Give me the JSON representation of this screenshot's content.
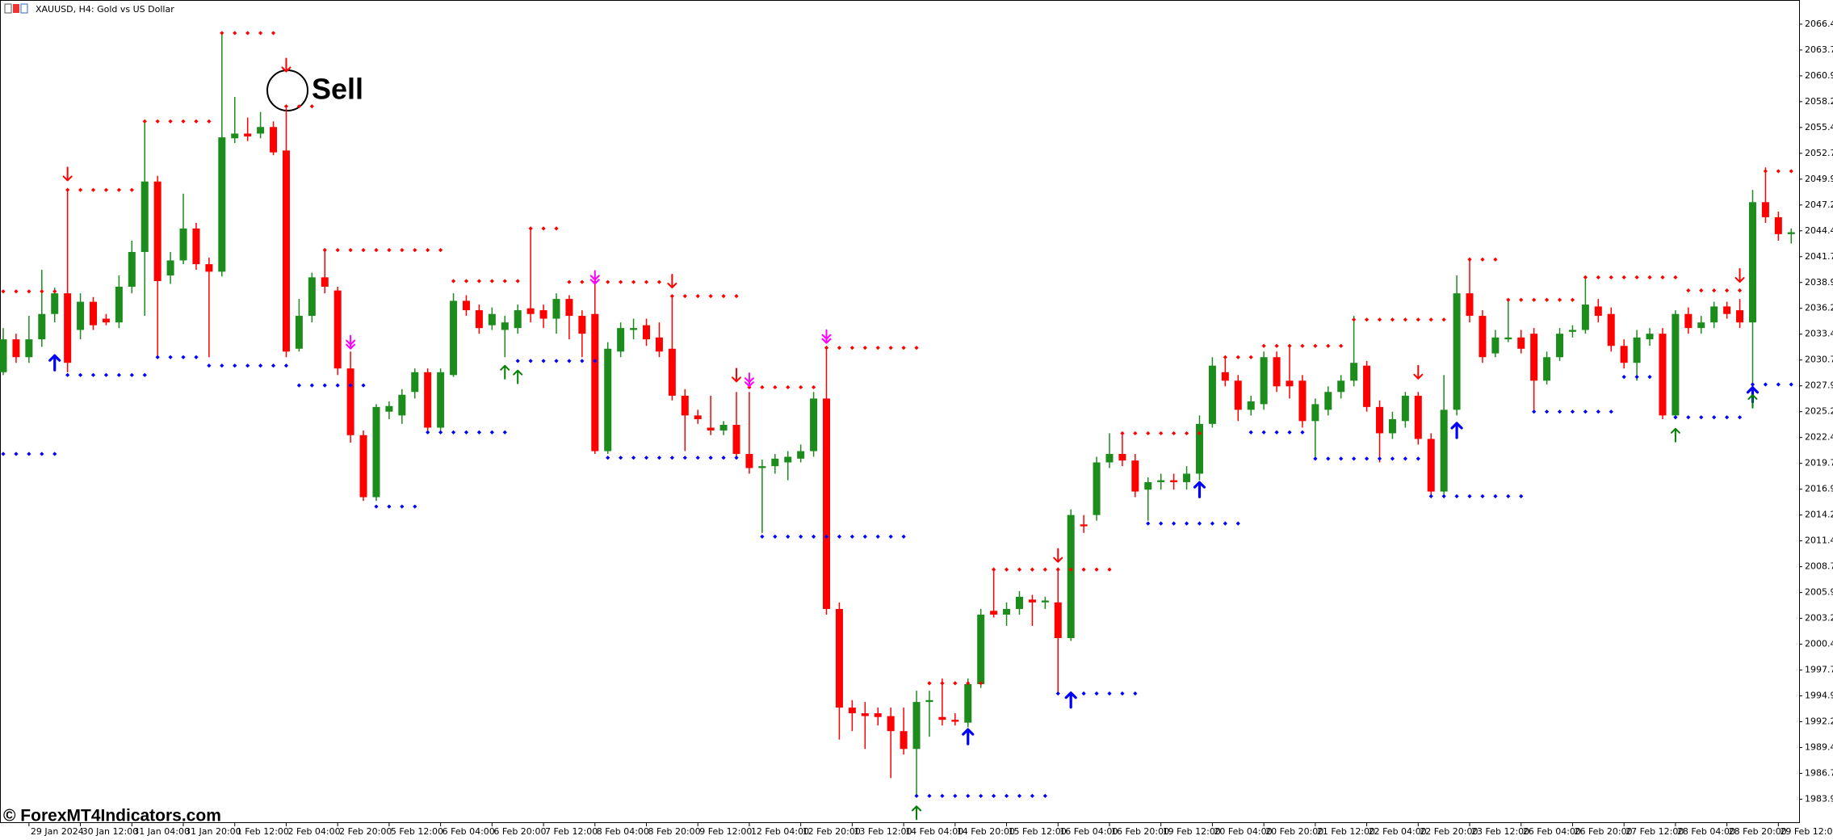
{
  "chart_data": {
    "type": "candlestick",
    "title": "XAUUSD, H4:  Gold vs US Dollar",
    "annotation": "Sell",
    "watermark": "© ForexMT4Indicators.com",
    "up_color": "#1c8c1c",
    "down_color": "#ff0000",
    "categories": [
      null,
      null,
      "29 Jan 2024",
      null,
      null,
      null,
      "30 Jan 12:00",
      null,
      null,
      null,
      "31 Jan 04:00",
      null,
      null,
      null,
      "31 Jan 20:00",
      null,
      null,
      null,
      "1 Feb 12:00",
      null,
      null,
      null,
      "2 Feb 04:00",
      null,
      null,
      null,
      "2 Feb 20:00",
      null,
      null,
      null,
      "5 Feb 12:00",
      null,
      null,
      null,
      "6 Feb 04:00",
      null,
      null,
      null,
      "6 Feb 20:00",
      null,
      null,
      null,
      "7 Feb 12:00",
      null,
      null,
      null,
      "8 Feb 04:00",
      null,
      null,
      null,
      "8 Feb 20:00",
      null,
      null,
      null,
      "9 Feb 12:00",
      null,
      null,
      null,
      "12 Feb 04:00",
      null,
      null,
      null,
      "12 Feb 20:00",
      null,
      null,
      null,
      "13 Feb 12:00",
      null,
      null,
      null,
      "14 Feb 04:00",
      null,
      null,
      null,
      "14 Feb 20:00",
      null,
      null,
      null,
      "15 Feb 12:00",
      null,
      null,
      null,
      "16 Feb 04:00",
      null,
      null,
      null,
      "16 Feb 20:00",
      null,
      null,
      null,
      "19 Feb 12:00",
      null,
      null,
      null,
      "20 Feb 04:00",
      null,
      null,
      null,
      "20 Feb 20:00",
      null,
      null,
      null,
      "21 Feb 12:00",
      null,
      null,
      null,
      "22 Feb 04:00",
      null,
      null,
      null,
      "22 Feb 20:00",
      null,
      null,
      null,
      "23 Feb 12:00",
      null,
      null,
      null,
      "26 Feb 04:00",
      null,
      null,
      null,
      "26 Feb 20:00",
      null,
      null,
      null,
      "27 Feb 12:00",
      null,
      null,
      null,
      "28 Feb 04:00",
      null,
      null,
      null,
      "28 Feb 20:00",
      null,
      null,
      null,
      "29 Feb 12:00",
      null
    ],
    "open": [
      2029.4,
      2032.9,
      2031.0,
      2032.9,
      2035.6,
      2037.8,
      2033.9,
      2036.9,
      2035.1,
      2034.7,
      2038.5,
      2042.2,
      2049.7,
      2039.7,
      2041.3,
      2044.7,
      2040.9,
      2040.1,
      2054.3,
      2054.8,
      2054.8,
      2055.5,
      2053.0,
      2031.9,
      2035.4,
      2039.5,
      2038.1,
      2029.8,
      2022.7,
      2016.1,
      2025.2,
      2024.8,
      2027.3,
      2029.4,
      2023.5,
      2029.1,
      2037.0,
      2036.0,
      2034.4,
      2033.9,
      2034.1,
      2036.2,
      2036.0,
      2035.1,
      2037.2,
      2035.4,
      2035.6,
      2021.0,
      2031.6,
      2033.9,
      2034.4,
      2033.1,
      2031.9,
      2026.9,
      2024.8,
      2023.5,
      2023.2,
      2023.8,
      2020.7,
      2019.2,
      2019.4,
      2019.8,
      2020.2,
      2021.0,
      2026.6,
      2004.2,
      1993.7,
      1993.1,
      1993.1,
      1992.8,
      1991.2,
      1989.3,
      1994.3,
      1992.7,
      1992.4,
      1992.1,
      1996.2,
      2004.0,
      2003.6,
      2004.2,
      2005.2,
      2004.9,
      2004.9,
      2001.1,
      2013.2,
      2014.2,
      2019.8,
      2020.7,
      2020.0,
      2016.9,
      2017.7,
      2017.9,
      2017.7,
      2018.6,
      2023.9,
      2029.4,
      2028.5,
      2025.4,
      2026.0,
      2031.0,
      2028.5,
      2028.5,
      2024.2,
      2025.4,
      2027.3,
      2028.5,
      2030.1,
      2025.7,
      2022.9,
      2024.2,
      2026.9,
      2022.3,
      2016.7,
      2025.4,
      2037.8,
      2035.4,
      2031.4,
      2032.9,
      2033.1,
      2033.5,
      2028.5,
      2031.0,
      2033.7,
      2033.9,
      2036.4,
      2035.6,
      2032.2,
      2030.4,
      2032.9,
      2033.5,
      2024.8,
      2035.6,
      2034.1,
      2034.7,
      2036.4,
      2036.0,
      2034.7,
      2047.5,
      2045.9,
      2044.1
    ],
    "high": [
      2034.1,
      2033.5,
      2035.4,
      2040.3,
      2038.4,
      2049.0,
      2037.8,
      2037.4,
      2035.6,
      2039.7,
      2043.4,
      2056.1,
      2050.3,
      2042.2,
      2048.4,
      2045.3,
      2041.6,
      2065.5,
      2058.7,
      2056.5,
      2057.1,
      2056.1,
      2057.5,
      2037.2,
      2040.0,
      2042.6,
      2038.5,
      2031.6,
      2023.2,
      2026.0,
      2026.3,
      2027.6,
      2029.8,
      2029.8,
      2029.8,
      2037.8,
      2037.6,
      2036.6,
      2036.3,
      2035.4,
      2036.6,
      2044.7,
      2036.6,
      2037.8,
      2037.6,
      2036.0,
      2040.1,
      2032.6,
      2034.7,
      2035.1,
      2035.1,
      2034.7,
      2037.6,
      2027.6,
      2025.4,
      2026.9,
      2024.2,
      2027.3,
      2027.3,
      2020.1,
      2020.7,
      2021.0,
      2021.7,
      2027.3,
      2032.2,
      2004.9,
      1994.5,
      1994.3,
      1993.7,
      1993.7,
      1993.7,
      1995.5,
      1995.5,
      1996.8,
      1993.1,
      1996.8,
      2004.2,
      2008.6,
      2004.9,
      2006.1,
      2005.7,
      2005.5,
      2008.6,
      2014.8,
      2014.2,
      2020.4,
      2022.9,
      2022.9,
      2020.7,
      2018.2,
      2018.6,
      2018.6,
      2019.4,
      2024.8,
      2031.0,
      2031.0,
      2029.1,
      2026.9,
      2031.6,
      2031.6,
      2032.2,
      2029.1,
      2026.6,
      2027.9,
      2029.1,
      2035.4,
      2030.6,
      2026.4,
      2025.2,
      2027.3,
      2027.3,
      2022.9,
      2029.1,
      2039.7,
      2041.6,
      2036.0,
      2033.9,
      2037.2,
      2033.9,
      2034.1,
      2031.6,
      2034.1,
      2034.4,
      2039.7,
      2037.2,
      2036.3,
      2032.9,
      2033.9,
      2034.1,
      2034.1,
      2036.0,
      2036.3,
      2035.4,
      2036.9,
      2036.9,
      2037.2,
      2048.8,
      2051.2,
      2046.5,
      2044.7
    ],
    "low": [
      2029.1,
      2030.4,
      2030.4,
      2032.1,
      2034.7,
      2029.4,
      2032.9,
      2033.9,
      2034.4,
      2034.1,
      2037.8,
      2035.4,
      2031.0,
      2038.8,
      2040.9,
      2040.3,
      2031.0,
      2039.6,
      2053.8,
      2054.0,
      2054.3,
      2052.5,
      2031.0,
      2031.6,
      2034.7,
      2037.8,
      2029.1,
      2021.9,
      2015.7,
      2015.7,
      2024.4,
      2023.9,
      2026.6,
      2023.2,
      2023.2,
      2028.9,
      2035.4,
      2033.5,
      2033.9,
      2031.0,
      2033.5,
      2034.7,
      2034.1,
      2033.5,
      2032.9,
      2031.0,
      2020.7,
      2020.7,
      2031.0,
      2032.9,
      2032.2,
      2031.0,
      2026.4,
      2021.0,
      2023.9,
      2022.7,
      2022.7,
      2020.2,
      2018.6,
      2012.3,
      2018.6,
      2017.9,
      2019.8,
      2020.4,
      2003.6,
      1990.3,
      1991.2,
      1989.3,
      1991.8,
      1986.2,
      1988.7,
      1984.3,
      1990.6,
      1991.8,
      1991.8,
      1991.6,
      1995.8,
      2003.3,
      2002.4,
      2003.6,
      2002.4,
      2004.2,
      1995.3,
      2000.8,
      2012.3,
      2013.6,
      2019.2,
      2019.4,
      2016.1,
      2013.6,
      2016.9,
      2016.9,
      2016.9,
      2017.9,
      2023.5,
      2027.9,
      2024.2,
      2024.8,
      2025.4,
      2027.3,
      2026.6,
      2023.5,
      2020.4,
      2024.8,
      2026.6,
      2027.9,
      2025.2,
      2019.8,
      2022.3,
      2023.5,
      2021.7,
      2016.1,
      2016.4,
      2024.8,
      2034.7,
      2030.4,
      2031.0,
      2032.6,
      2031.4,
      2025.2,
      2028.1,
      2030.6,
      2033.1,
      2033.5,
      2034.7,
      2031.6,
      2029.8,
      2028.5,
      2032.2,
      2024.4,
      2024.4,
      2033.5,
      2033.5,
      2034.1,
      2035.1,
      2034.1,
      2027.9,
      2045.3,
      2043.4,
      2043.1
    ],
    "close": [
      2032.9,
      2031.0,
      2032.9,
      2035.6,
      2037.8,
      2030.4,
      2036.9,
      2034.4,
      2034.7,
      2038.5,
      2042.2,
      2049.7,
      2039.1,
      2041.3,
      2044.7,
      2040.9,
      2040.1,
      2054.4,
      2054.8,
      2054.5,
      2055.5,
      2052.8,
      2031.6,
      2035.4,
      2039.5,
      2038.5,
      2029.8,
      2022.7,
      2016.1,
      2025.7,
      2025.8,
      2027.0,
      2029.4,
      2023.5,
      2029.4,
      2037.0,
      2036.0,
      2034.1,
      2035.6,
      2034.7,
      2036.0,
      2035.6,
      2035.1,
      2037.2,
      2035.4,
      2033.5,
      2021.0,
      2031.9,
      2034.1,
      2034.1,
      2032.9,
      2031.6,
      2026.9,
      2024.8,
      2024.4,
      2023.2,
      2023.8,
      2020.7,
      2019.2,
      2019.4,
      2020.2,
      2020.4,
      2021.0,
      2026.6,
      2004.2,
      1993.7,
      1993.1,
      1992.8,
      1992.7,
      1991.2,
      1989.3,
      1994.3,
      1994.5,
      1992.4,
      1992.2,
      1996.2,
      2003.6,
      2003.6,
      2004.2,
      2005.5,
      2004.9,
      2005.1,
      2001.1,
      2014.2,
      2013.0,
      2019.8,
      2020.7,
      2020.0,
      2016.7,
      2017.7,
      2017.9,
      2017.7,
      2018.6,
      2023.9,
      2030.1,
      2028.5,
      2025.4,
      2026.3,
      2031.0,
      2027.9,
      2027.9,
      2024.2,
      2026.0,
      2027.3,
      2028.5,
      2030.4,
      2025.7,
      2022.9,
      2024.4,
      2026.9,
      2022.3,
      2016.7,
      2025.4,
      2037.8,
      2035.4,
      2031.0,
      2033.1,
      2033.1,
      2031.9,
      2028.5,
      2031.0,
      2033.5,
      2033.9,
      2036.6,
      2035.4,
      2032.2,
      2030.4,
      2033.1,
      2033.5,
      2024.8,
      2035.6,
      2034.1,
      2034.7,
      2036.4,
      2035.6,
      2034.7,
      2047.5,
      2045.9,
      2044.1,
      2044.3
    ],
    "levels": [
      {
        "color": "#ff0000",
        "values": [
          2038.0,
          2038.0,
          2038.0,
          2038.0,
          2038.0,
          2048.8,
          2048.8,
          2048.8,
          2048.8,
          2048.8,
          2048.8,
          2056.1,
          2056.1,
          2056.1,
          2056.1,
          2056.1,
          2056.1,
          2065.5,
          2065.5,
          2065.5,
          2065.5,
          2065.5,
          2057.7,
          2057.7,
          2057.7,
          2042.4,
          2042.4,
          2042.4,
          2042.4,
          2042.4,
          2042.4,
          2042.4,
          2042.4,
          2042.4,
          2042.4,
          2039.1,
          2039.1,
          2039.1,
          2039.1,
          2039.1,
          2039.1,
          2044.7,
          2044.7,
          2044.7,
          2039.0,
          2039.0,
          2039.0,
          2039.0,
          2039.0,
          2039.0,
          2039.0,
          2039.0,
          2037.5,
          2037.5,
          2037.5,
          2037.5,
          2037.5,
          2037.5,
          2027.8,
          2027.8,
          2027.8,
          2027.8,
          2027.8,
          2027.8,
          2032.0,
          2032.0,
          2032.0,
          2032.0,
          2032.0,
          2032.0,
          2032.0,
          2032.0,
          1996.3,
          1996.3,
          1996.3,
          1996.3,
          1996.3,
          2008.4,
          2008.4,
          2008.4,
          2008.4,
          2008.4,
          2008.4,
          2008.4,
          2008.4,
          2008.4,
          2008.4,
          2022.9,
          2022.9,
          2022.9,
          2022.9,
          2022.9,
          2022.9,
          2022.9,
          null,
          2031.0,
          2031.0,
          2031.0,
          2032.2,
          2032.2,
          2032.2,
          2032.2,
          2032.2,
          2032.2,
          2032.2,
          2035.0,
          2035.0,
          2035.0,
          2035.0,
          2035.0,
          2035.0,
          2035.0,
          2035.0,
          null,
          2041.4,
          2041.4,
          2041.4,
          2037.1,
          2037.1,
          2037.1,
          2037.1,
          2037.1,
          2037.1,
          2039.5,
          2039.5,
          2039.5,
          2039.5,
          2039.5,
          2039.5,
          2039.5,
          2039.5,
          2038.1,
          2038.1,
          2038.1,
          2038.1,
          2038.1,
          null,
          2050.8,
          2050.8,
          2050.8
        ]
      },
      {
        "color": "#0000ff",
        "values": [
          2020.7,
          2020.7,
          2020.7,
          2020.7,
          2020.7,
          2029.1,
          2029.1,
          2029.1,
          2029.1,
          2029.1,
          2029.1,
          2029.1,
          2031.0,
          2031.0,
          2031.0,
          2031.0,
          2030.1,
          2030.1,
          2030.1,
          2030.1,
          2030.1,
          2030.1,
          2030.1,
          2028.0,
          2028.0,
          2028.0,
          2028.0,
          2028.0,
          2028.0,
          2015.1,
          2015.1,
          2015.1,
          2015.1,
          2023.0,
          2023.0,
          2023.0,
          2023.0,
          2023.0,
          2023.0,
          2023.0,
          2030.6,
          2030.6,
          2030.6,
          2030.6,
          2030.6,
          2030.6,
          2030.6,
          2020.3,
          2020.3,
          2020.3,
          2020.3,
          2020.3,
          2020.3,
          2020.3,
          2020.3,
          2020.3,
          2020.3,
          2020.3,
          null,
          2011.9,
          2011.9,
          2011.9,
          2011.9,
          2011.9,
          2011.9,
          2011.9,
          2011.9,
          2011.9,
          2011.9,
          2011.9,
          2011.9,
          1984.3,
          1984.3,
          1984.3,
          1984.3,
          1984.3,
          1984.3,
          1984.3,
          1984.3,
          1984.3,
          1984.3,
          1984.3,
          1995.2,
          1995.2,
          1995.2,
          1995.2,
          1995.2,
          1995.2,
          1995.2,
          2013.3,
          2013.3,
          2013.3,
          2013.3,
          2013.3,
          2013.3,
          2013.3,
          2013.3,
          2023.0,
          2023.0,
          2023.0,
          2023.0,
          2023.0,
          2020.2,
          2020.2,
          2020.2,
          2020.2,
          2020.2,
          2020.2,
          2020.2,
          2020.2,
          2020.2,
          2016.2,
          2016.2,
          2016.2,
          2016.2,
          2016.2,
          2016.2,
          2016.2,
          2016.2,
          2025.2,
          2025.2,
          2025.2,
          2025.2,
          2025.2,
          2025.2,
          2025.2,
          2028.9,
          2028.9,
          2028.9,
          null,
          2024.6,
          2024.6,
          2024.6,
          2024.6,
          2024.6,
          2024.6,
          2028.1,
          2028.1,
          2028.1,
          2028.1
        ]
      }
    ],
    "arrows": [
      {
        "color": "#ff0000",
        "direction": "down",
        "x": [
          5,
          22,
          52,
          57,
          82,
          110,
          135
        ],
        "values": [
          2050.5,
          2062.1,
          2039.1,
          2029.1,
          2009.9,
          2029.4,
          2039.7
        ]
      },
      {
        "color": "#ff00ff",
        "direction": "down",
        "x": [
          27,
          46,
          58,
          64
        ],
        "values": [
          2032.6,
          2039.5,
          2028.6,
          2033.2
        ]
      },
      {
        "color": "#0000ff",
        "direction": "up",
        "x": [
          4,
          75,
          83,
          93,
          113,
          136
        ],
        "values": [
          2030.4,
          1990.6,
          1994.5,
          2016.9,
          2023.2,
          2027.0
        ]
      },
      {
        "color": "#008000",
        "direction": "up",
        "x": [
          39,
          40,
          71,
          130,
          136
        ],
        "values": [
          2029.4,
          2028.9,
          1982.5,
          2022.7,
          2026.3
        ]
      }
    ],
    "ylim": [
      1981.5,
      2067.3
    ],
    "yticks": [
      2066.45,
      {
        "value": 2063.7,
        "label": "2063.70"
      },
      2060.95,
      {
        "value": 2058.2,
        "label": "2058.20"
      },
      2055.45,
      {
        "value": 2052.7,
        "label": "2052.70"
      },
      2049.95,
      {
        "value": 2047.2,
        "label": "2047.20"
      },
      2044.45,
      {
        "value": 2041.7,
        "label": "2041.70"
      },
      2038.95,
      {
        "value": 2036.2,
        "label": "2036.20"
      },
      2033.45,
      {
        "value": 2030.7,
        "label": "2030.70"
      },
      2027.95,
      {
        "value": 2025.2,
        "label": "2025.20"
      },
      2022.45,
      {
        "value": 2019.7,
        "label": "2019.70"
      },
      2016.95,
      {
        "value": 2014.2,
        "label": "2014.20"
      },
      2011.45,
      {
        "value": 2008.7,
        "label": "2008.70"
      },
      2005.95,
      {
        "value": 2003.2,
        "label": "2003.20"
      },
      2000.45,
      {
        "value": 1997.7,
        "label": "1997.70"
      },
      1994.95,
      {
        "value": 1992.2,
        "label": "1992.20"
      },
      1989.45,
      {
        "value": 1986.7,
        "label": "1986.70"
      },
      1983.95
    ],
    "grid": false
  }
}
